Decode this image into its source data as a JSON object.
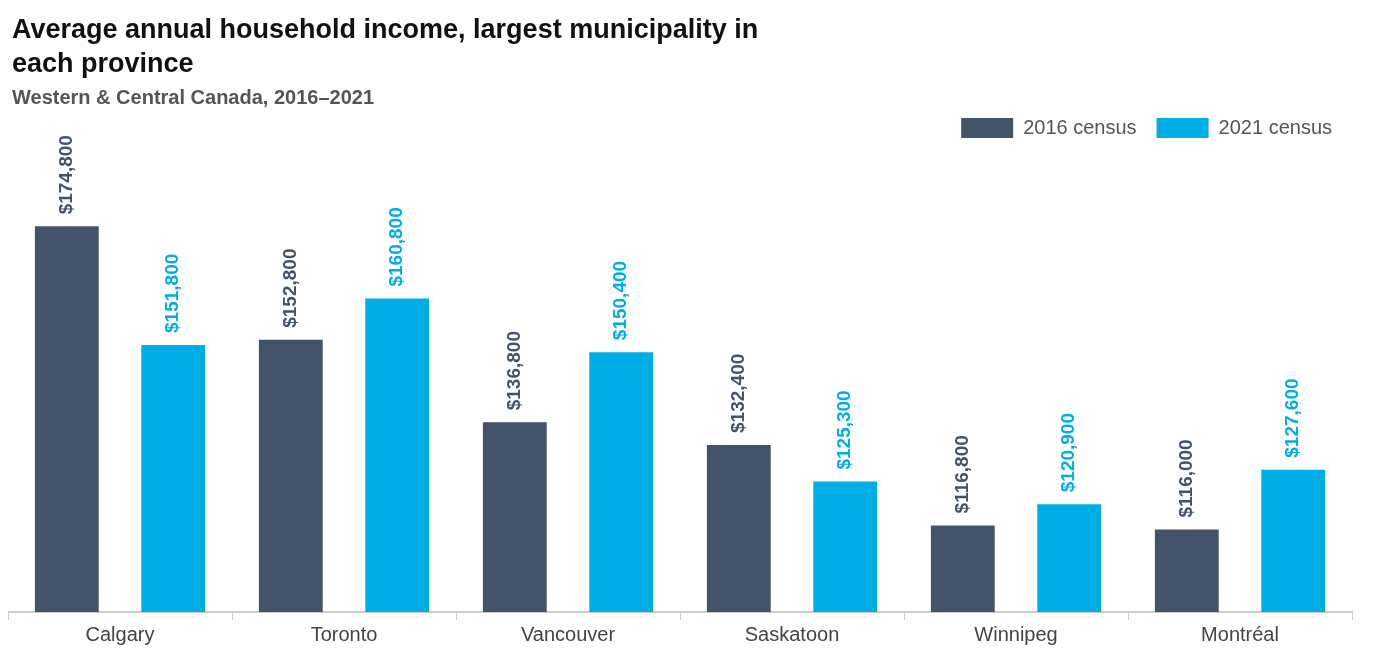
{
  "chart_data": {
    "type": "bar",
    "title": "Average annual household income, largest municipality in each province",
    "subtitle": "Western & Central Canada, 2016–2021",
    "categories": [
      "Calgary",
      "Toronto",
      "Vancouver",
      "Saskatoon",
      "Winnipeg",
      "Montréal"
    ],
    "series": [
      {
        "name": "2016 census",
        "color": "#435369",
        "values": [
          174800,
          152800,
          136800,
          132400,
          116800,
          116000
        ],
        "value_labels": [
          "$174,800",
          "$152,800",
          "$136,800",
          "$132,400",
          "$116,800",
          "$116,000"
        ]
      },
      {
        "name": "2021 census",
        "color": "#00aee6",
        "values": [
          151800,
          160800,
          150400,
          125300,
          120900,
          127600
        ],
        "value_labels": [
          "$151,800",
          "$160,800",
          "$150,400",
          "$125,300",
          "$120,900",
          "$127,600"
        ]
      }
    ],
    "legend": "top right",
    "grid": false
  }
}
